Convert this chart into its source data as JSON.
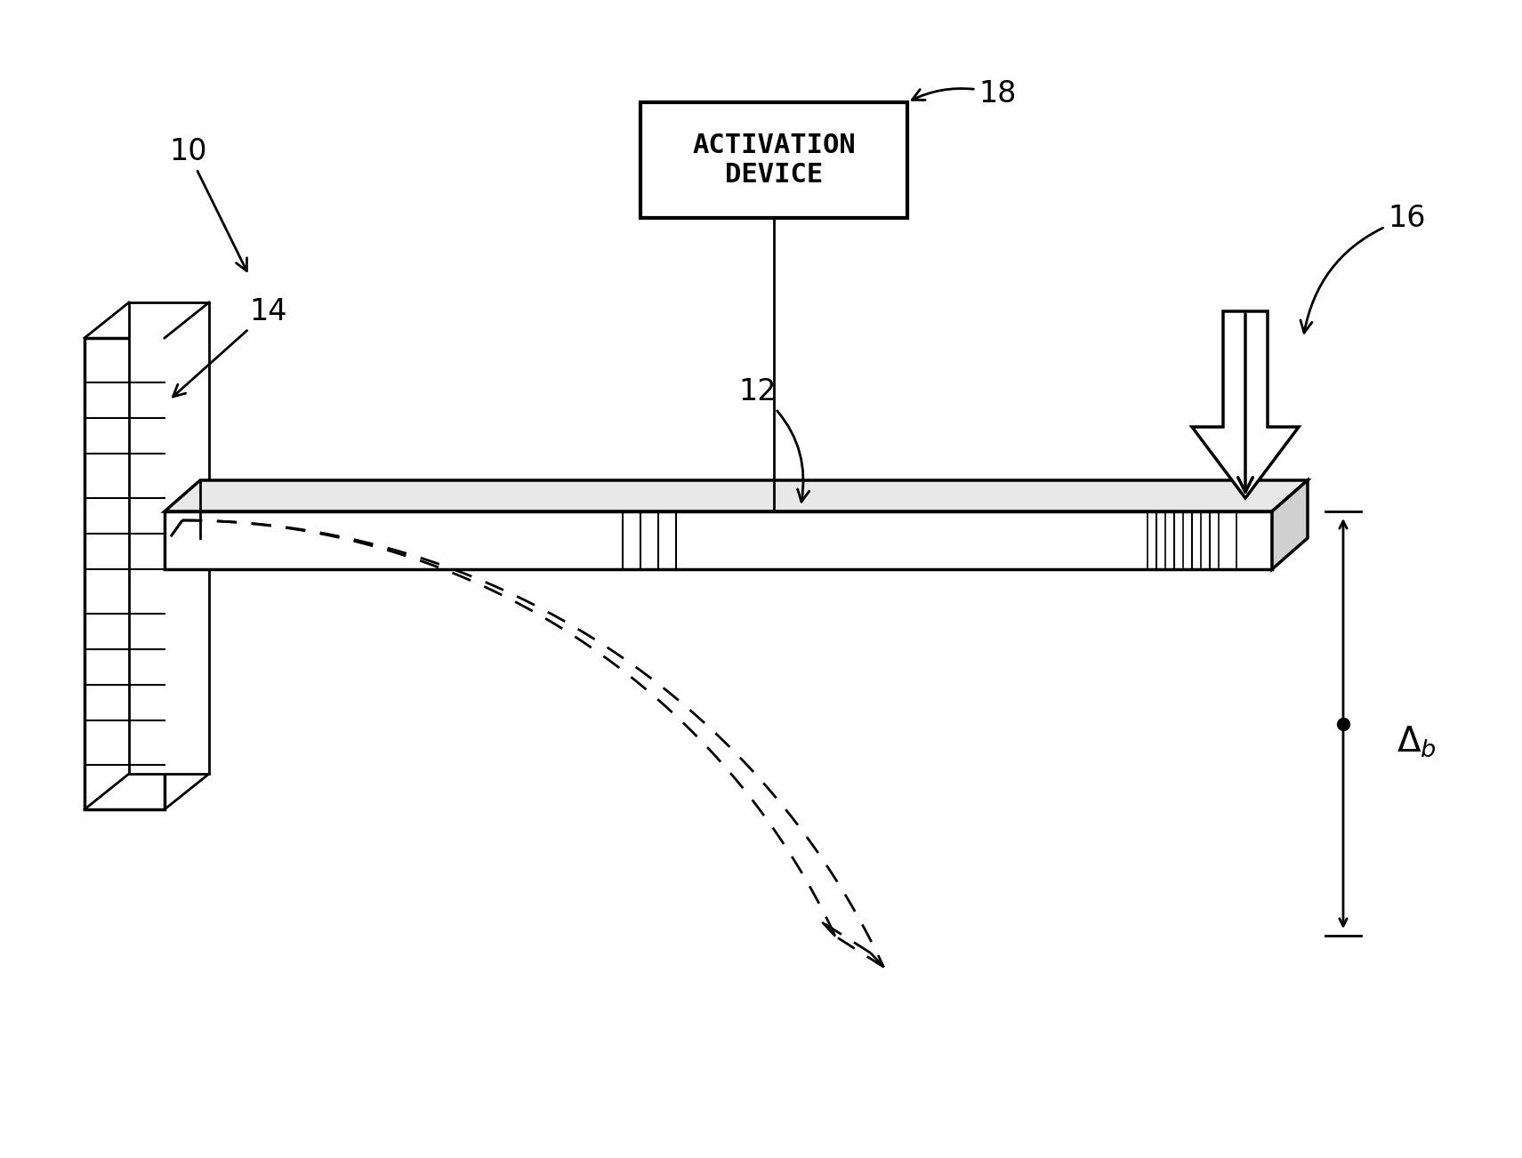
{
  "bg_color": "#ffffff",
  "line_color": "#000000",
  "dashed_color": "#000000",
  "label_10": "10",
  "label_12": "12",
  "label_14": "14",
  "label_16": "16",
  "label_18": "18",
  "label_delta": "Δ",
  "label_b": "b",
  "activation_text": [
    "ACTIVATION",
    "DEVICE"
  ],
  "figsize": [
    17.11,
    13.02
  ],
  "dpi": 100
}
